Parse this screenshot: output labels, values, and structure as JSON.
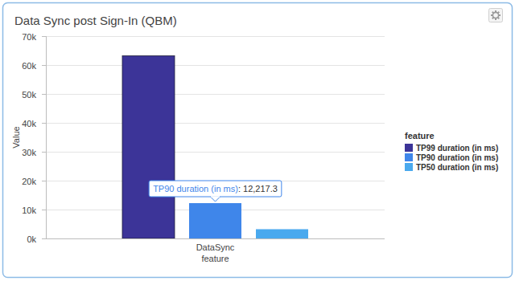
{
  "chart_data": {
    "type": "bar",
    "title": "Data Sync post Sign-In (QBM)",
    "x_label": "feature",
    "y_label": "Value",
    "legend_title": "feature",
    "categories": [
      "DataSync"
    ],
    "series": [
      {
        "name": "TP99 duration (in ms)",
        "color": "#3c3498",
        "values": [
          63200
        ]
      },
      {
        "name": "TP90 duration (in ms)",
        "color": "#3f86ea",
        "values": [
          12217.3
        ]
      },
      {
        "name": "TP50 duration (in ms)",
        "color": "#4aa9ee",
        "values": [
          3200
        ]
      }
    ],
    "ylim": [
      0,
      70000
    ],
    "yticks": [
      {
        "value": 0,
        "label": "0k"
      },
      {
        "value": 10000,
        "label": "10k"
      },
      {
        "value": 20000,
        "label": "20k"
      },
      {
        "value": 30000,
        "label": "30k"
      },
      {
        "value": 40000,
        "label": "40k"
      },
      {
        "value": 50000,
        "label": "50k"
      },
      {
        "value": 60000,
        "label": "60k"
      },
      {
        "value": 70000,
        "label": "70k"
      }
    ],
    "grid": true,
    "legend": "right",
    "tooltip": {
      "series": "TP90 duration (in ms)",
      "category": "DataSync",
      "text": ": 12,217.3"
    }
  }
}
